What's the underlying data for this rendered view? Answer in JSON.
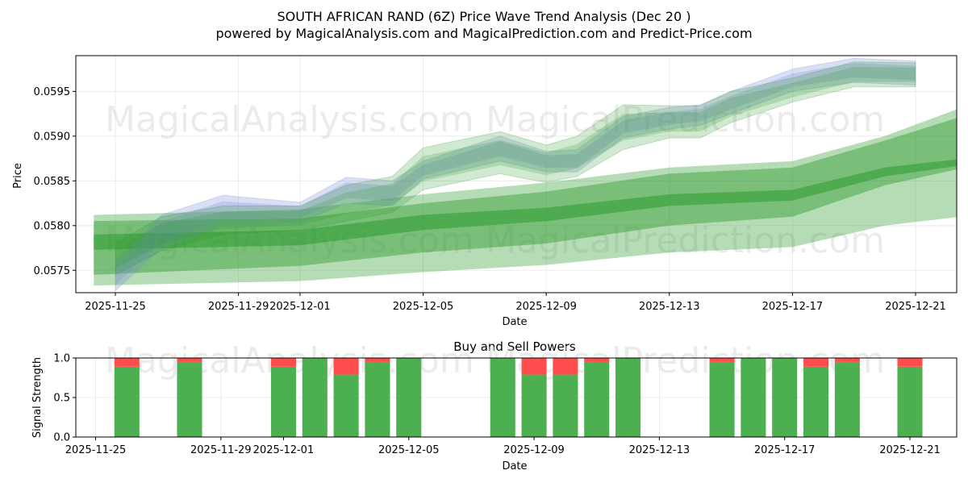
{
  "header": {
    "title": "SOUTH AFRICAN RAND (6Z) Price Wave Trend Analysis (Dec 20 )",
    "subtitle": "powered by MagicalAnalysis.com and MagicalPrediction.com and Predict-Price.com"
  },
  "watermarks": [
    "MagicalAnalysis.com",
    "MagicalPrediction.com"
  ],
  "colors": {
    "buy": "#4caf50",
    "sell": "#ff4d4d",
    "band_green": "#2e9a2e",
    "band_blue": "#7b8bd6"
  },
  "chart_data": [
    {
      "type": "area",
      "title": "",
      "xlabel": "Date",
      "ylabel": "Price",
      "xlim": [
        "2025-11-24",
        "2025-12-22"
      ],
      "ylim": [
        0.05725,
        0.0599
      ],
      "grid": true,
      "yticks": [
        {
          "v": 0.0575,
          "label": "0.0575"
        },
        {
          "v": 0.058,
          "label": "0.0580"
        },
        {
          "v": 0.0585,
          "label": "0.0585"
        },
        {
          "v": 0.059,
          "label": "0.0590"
        },
        {
          "v": 0.0595,
          "label": "0.0595"
        }
      ],
      "xticks": [
        {
          "day": 1,
          "label": "2025-11-25"
        },
        {
          "day": 5,
          "label": "2025-11-29"
        },
        {
          "day": 7,
          "label": "2025-12-01"
        },
        {
          "day": 11,
          "label": "2025-12-05"
        },
        {
          "day": 15,
          "label": "2025-12-09"
        },
        {
          "day": 19,
          "label": "2025-12-13"
        },
        {
          "day": 23,
          "label": "2025-12-17"
        },
        {
          "day": 27,
          "label": "2025-12-21"
        }
      ],
      "prediction_bands": [
        {
          "name": "wide",
          "opacity": 0.35,
          "x": [
            0.3,
            7,
            11,
            15,
            19,
            23,
            26,
            28.5
          ],
          "upper": [
            0.05812,
            0.05818,
            0.05835,
            0.05848,
            0.05865,
            0.05872,
            0.059,
            0.05932
          ],
          "lower": [
            0.05733,
            0.05738,
            0.05748,
            0.05756,
            0.0577,
            0.05776,
            0.058,
            0.0581
          ]
        },
        {
          "name": "mid",
          "opacity": 0.45,
          "x": [
            0.3,
            7,
            11,
            15,
            19,
            23,
            26,
            28.6
          ],
          "upper": [
            0.05805,
            0.05808,
            0.05825,
            0.05838,
            0.05858,
            0.05865,
            0.05895,
            0.05923
          ],
          "lower": [
            0.05745,
            0.05755,
            0.0577,
            0.0578,
            0.058,
            0.0581,
            0.05845,
            0.05865
          ]
        },
        {
          "name": "core",
          "opacity": 0.55,
          "x": [
            0.3,
            7,
            11,
            15,
            19,
            23,
            26,
            28.6
          ],
          "upper": [
            0.0579,
            0.05795,
            0.05812,
            0.0582,
            0.05835,
            0.0584,
            0.05865,
            0.05875
          ],
          "lower": [
            0.05773,
            0.05778,
            0.05795,
            0.05805,
            0.05822,
            0.05828,
            0.05855,
            0.05868
          ]
        }
      ],
      "price_bands": [
        {
          "name": "blue",
          "color": "#7b8bd6",
          "opacity": 0.28,
          "x": [
            1.0,
            2.5,
            4.5,
            7.0,
            8.5,
            10.0,
            11.0,
            13.5,
            15.0,
            16.0,
            17.5,
            19.0,
            20.0,
            21.0,
            23.0,
            25.0,
            27.0
          ],
          "upper": [
            0.0576,
            0.05812,
            0.05834,
            0.05826,
            0.05854,
            0.0585,
            0.05872,
            0.059,
            0.05883,
            0.05885,
            0.05922,
            0.05932,
            0.05935,
            0.0595,
            0.05975,
            0.05987,
            0.05984
          ],
          "lower": [
            0.05727,
            0.05775,
            0.058,
            0.05804,
            0.05825,
            0.05822,
            0.05852,
            0.05872,
            0.0586,
            0.0586,
            0.05898,
            0.05908,
            0.05912,
            0.05925,
            0.0595,
            0.0596,
            0.05957
          ]
        },
        {
          "name": "green",
          "color": "#2e9a2e",
          "opacity": 0.22,
          "x": [
            1.0,
            2.5,
            4.5,
            7.0,
            8.5,
            10.0,
            11.0,
            13.5,
            15.0,
            16.0,
            17.5,
            19.0,
            20.0,
            21.0,
            23.0,
            25.0,
            27.0
          ],
          "upper": [
            0.0578,
            0.0581,
            0.05822,
            0.05822,
            0.05845,
            0.05855,
            0.05887,
            0.05905,
            0.0589,
            0.059,
            0.05935,
            0.05934,
            0.05934,
            0.0595,
            0.05965,
            0.05983,
            0.05982
          ],
          "lower": [
            0.05745,
            0.05772,
            0.0579,
            0.05795,
            0.05805,
            0.05815,
            0.0584,
            0.05858,
            0.05848,
            0.05855,
            0.05885,
            0.05898,
            0.05898,
            0.05915,
            0.05938,
            0.05955,
            0.05955
          ]
        }
      ]
    },
    {
      "type": "bar",
      "title": "Buy and Sell Powers",
      "xlabel": "Date",
      "ylabel": "Signal Strength",
      "ylim": [
        0,
        1
      ],
      "yticks": [
        {
          "v": 0,
          "label": "0.0"
        },
        {
          "v": 0.5,
          "label": "0.5"
        },
        {
          "v": 1,
          "label": "1.0"
        }
      ],
      "xticks": [
        {
          "day": 0,
          "label": "2025-11-25"
        },
        {
          "day": 4,
          "label": "2025-11-29"
        },
        {
          "day": 6,
          "label": "2025-12-01"
        },
        {
          "day": 10,
          "label": "2025-12-05"
        },
        {
          "day": 14,
          "label": "2025-12-09"
        },
        {
          "day": 18,
          "label": "2025-12-13"
        },
        {
          "day": 22,
          "label": "2025-12-17"
        },
        {
          "day": 26,
          "label": "2025-12-21"
        }
      ],
      "bars": [
        {
          "day": 1,
          "buy": 0.89,
          "sell": 0.11
        },
        {
          "day": 3,
          "buy": 0.95,
          "sell": 0.05
        },
        {
          "day": 6,
          "buy": 0.89,
          "sell": 0.11
        },
        {
          "day": 7,
          "buy": 1.0,
          "sell": 0.0
        },
        {
          "day": 8,
          "buy": 0.79,
          "sell": 0.21
        },
        {
          "day": 9,
          "buy": 0.95,
          "sell": 0.05
        },
        {
          "day": 10,
          "buy": 1.0,
          "sell": 0.0
        },
        {
          "day": 13,
          "buy": 1.0,
          "sell": 0.0
        },
        {
          "day": 14,
          "buy": 0.79,
          "sell": 0.21
        },
        {
          "day": 15,
          "buy": 0.79,
          "sell": 0.21
        },
        {
          "day": 16,
          "buy": 0.95,
          "sell": 0.05
        },
        {
          "day": 17,
          "buy": 1.0,
          "sell": 0.0
        },
        {
          "day": 20,
          "buy": 0.95,
          "sell": 0.05
        },
        {
          "day": 21,
          "buy": 1.0,
          "sell": 0.0
        },
        {
          "day": 22,
          "buy": 1.0,
          "sell": 0.0
        },
        {
          "day": 23,
          "buy": 0.89,
          "sell": 0.11
        },
        {
          "day": 24,
          "buy": 0.95,
          "sell": 0.05
        },
        {
          "day": 26,
          "buy": 0.89,
          "sell": 0.11
        }
      ]
    }
  ]
}
